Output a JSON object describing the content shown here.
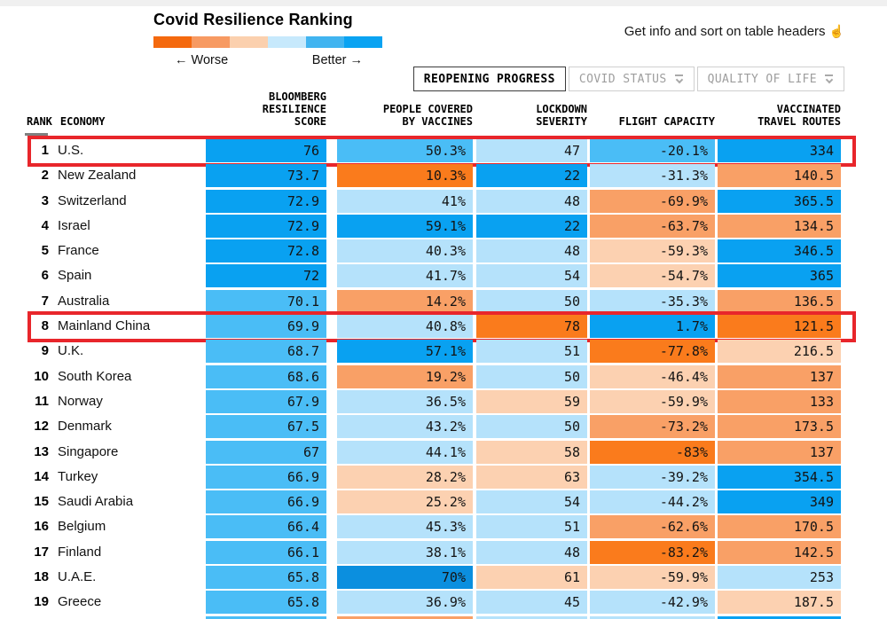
{
  "header": {
    "title": "Covid Resilience Ranking",
    "legend": {
      "worse_label": "← Worse",
      "better_label": "Better →",
      "colors": [
        "#f4690e",
        "#f79a62",
        "#fbd0ae",
        "#c7e9fc",
        "#41b4f0",
        "#0aa3f2"
      ]
    },
    "hint": "Get info and sort on table headers",
    "hand_icon": "☝"
  },
  "tabs": [
    {
      "label": "REOPENING PROGRESS",
      "active": true
    },
    {
      "label": "COVID STATUS",
      "active": false
    },
    {
      "label": "QUALITY OF LIFE",
      "active": false
    }
  ],
  "table": {
    "headers": {
      "rank": "RANK",
      "economy": "ECONOMY",
      "score": [
        "BLOOMBERG",
        "RESILIENCE",
        "SCORE"
      ],
      "vaccines": [
        "PEOPLE COVERED",
        "BY VACCINES"
      ],
      "lockdown": [
        "LOCKDOWN",
        "SEVERITY"
      ],
      "flight": [
        "FLIGHT CAPACITY"
      ],
      "routes": [
        "VACCINATED",
        "TRAVEL ROUTES"
      ]
    },
    "palette": {
      "b1": "#b5e2fb",
      "b2": "#4abdf6",
      "b3": "#09a1f1",
      "b4": "#0b8fdf",
      "o1": "#fcd1b1",
      "o2": "#f9a066",
      "o3": "#fa7b1c"
    },
    "highlight_color": "#e8262b",
    "rows": [
      {
        "rank": "1",
        "economy": "U.S.",
        "score": {
          "v": "76",
          "c": "b3"
        },
        "vaccines": {
          "v": "50.3%",
          "c": "b2"
        },
        "lockdown": {
          "v": "47",
          "c": "b1"
        },
        "flight": {
          "v": "-20.1%",
          "c": "b2"
        },
        "routes": {
          "v": "334",
          "c": "b3"
        },
        "highlight": true
      },
      {
        "rank": "2",
        "economy": "New Zealand",
        "score": {
          "v": "73.7",
          "c": "b3"
        },
        "vaccines": {
          "v": "10.3%",
          "c": "o3"
        },
        "lockdown": {
          "v": "22",
          "c": "b3"
        },
        "flight": {
          "v": "-31.3%",
          "c": "b1"
        },
        "routes": {
          "v": "140.5",
          "c": "o2"
        },
        "highlight": false
      },
      {
        "rank": "3",
        "economy": "Switzerland",
        "score": {
          "v": "72.9",
          "c": "b3"
        },
        "vaccines": {
          "v": "41%",
          "c": "b1"
        },
        "lockdown": {
          "v": "48",
          "c": "b1"
        },
        "flight": {
          "v": "-69.9%",
          "c": "o2"
        },
        "routes": {
          "v": "365.5",
          "c": "b3"
        },
        "highlight": false
      },
      {
        "rank": "4",
        "economy": "Israel",
        "score": {
          "v": "72.9",
          "c": "b3"
        },
        "vaccines": {
          "v": "59.1%",
          "c": "b3"
        },
        "lockdown": {
          "v": "22",
          "c": "b3"
        },
        "flight": {
          "v": "-63.7%",
          "c": "o2"
        },
        "routes": {
          "v": "134.5",
          "c": "o2"
        },
        "highlight": false
      },
      {
        "rank": "5",
        "economy": "France",
        "score": {
          "v": "72.8",
          "c": "b3"
        },
        "vaccines": {
          "v": "40.3%",
          "c": "b1"
        },
        "lockdown": {
          "v": "48",
          "c": "b1"
        },
        "flight": {
          "v": "-59.3%",
          "c": "o1"
        },
        "routes": {
          "v": "346.5",
          "c": "b3"
        },
        "highlight": false
      },
      {
        "rank": "6",
        "economy": "Spain",
        "score": {
          "v": "72",
          "c": "b3"
        },
        "vaccines": {
          "v": "41.7%",
          "c": "b1"
        },
        "lockdown": {
          "v": "54",
          "c": "b1"
        },
        "flight": {
          "v": "-54.7%",
          "c": "o1"
        },
        "routes": {
          "v": "365",
          "c": "b3"
        },
        "highlight": false
      },
      {
        "rank": "7",
        "economy": "Australia",
        "score": {
          "v": "70.1",
          "c": "b2"
        },
        "vaccines": {
          "v": "14.2%",
          "c": "o2"
        },
        "lockdown": {
          "v": "50",
          "c": "b1"
        },
        "flight": {
          "v": "-35.3%",
          "c": "b1"
        },
        "routes": {
          "v": "136.5",
          "c": "o2"
        },
        "highlight": false
      },
      {
        "rank": "8",
        "economy": "Mainland China",
        "score": {
          "v": "69.9",
          "c": "b2"
        },
        "vaccines": {
          "v": "40.8%",
          "c": "b1"
        },
        "lockdown": {
          "v": "78",
          "c": "o3"
        },
        "flight": {
          "v": "1.7%",
          "c": "b3"
        },
        "routes": {
          "v": "121.5",
          "c": "o3"
        },
        "highlight": true
      },
      {
        "rank": "9",
        "economy": "U.K.",
        "score": {
          "v": "68.7",
          "c": "b2"
        },
        "vaccines": {
          "v": "57.1%",
          "c": "b3"
        },
        "lockdown": {
          "v": "51",
          "c": "b1"
        },
        "flight": {
          "v": "-77.8%",
          "c": "o3"
        },
        "routes": {
          "v": "216.5",
          "c": "o1"
        },
        "highlight": false
      },
      {
        "rank": "10",
        "economy": "South Korea",
        "score": {
          "v": "68.6",
          "c": "b2"
        },
        "vaccines": {
          "v": "19.2%",
          "c": "o2"
        },
        "lockdown": {
          "v": "50",
          "c": "b1"
        },
        "flight": {
          "v": "-46.4%",
          "c": "o1"
        },
        "routes": {
          "v": "137",
          "c": "o2"
        },
        "highlight": false
      },
      {
        "rank": "11",
        "economy": "Norway",
        "score": {
          "v": "67.9",
          "c": "b2"
        },
        "vaccines": {
          "v": "36.5%",
          "c": "b1"
        },
        "lockdown": {
          "v": "59",
          "c": "o1"
        },
        "flight": {
          "v": "-59.9%",
          "c": "o1"
        },
        "routes": {
          "v": "133",
          "c": "o2"
        },
        "highlight": false
      },
      {
        "rank": "12",
        "economy": "Denmark",
        "score": {
          "v": "67.5",
          "c": "b2"
        },
        "vaccines": {
          "v": "43.2%",
          "c": "b1"
        },
        "lockdown": {
          "v": "50",
          "c": "b1"
        },
        "flight": {
          "v": "-73.2%",
          "c": "o2"
        },
        "routes": {
          "v": "173.5",
          "c": "o2"
        },
        "highlight": false
      },
      {
        "rank": "13",
        "economy": "Singapore",
        "score": {
          "v": "67",
          "c": "b2"
        },
        "vaccines": {
          "v": "44.1%",
          "c": "b1"
        },
        "lockdown": {
          "v": "58",
          "c": "o1"
        },
        "flight": {
          "v": "-83%",
          "c": "o3"
        },
        "routes": {
          "v": "137",
          "c": "o2"
        },
        "highlight": false
      },
      {
        "rank": "14",
        "economy": "Turkey",
        "score": {
          "v": "66.9",
          "c": "b2"
        },
        "vaccines": {
          "v": "28.2%",
          "c": "o1"
        },
        "lockdown": {
          "v": "63",
          "c": "o1"
        },
        "flight": {
          "v": "-39.2%",
          "c": "b1"
        },
        "routes": {
          "v": "354.5",
          "c": "b3"
        },
        "highlight": false
      },
      {
        "rank": "15",
        "economy": "Saudi Arabia",
        "score": {
          "v": "66.9",
          "c": "b2"
        },
        "vaccines": {
          "v": "25.2%",
          "c": "o1"
        },
        "lockdown": {
          "v": "54",
          "c": "b1"
        },
        "flight": {
          "v": "-44.2%",
          "c": "b1"
        },
        "routes": {
          "v": "349",
          "c": "b3"
        },
        "highlight": false
      },
      {
        "rank": "16",
        "economy": "Belgium",
        "score": {
          "v": "66.4",
          "c": "b2"
        },
        "vaccines": {
          "v": "45.3%",
          "c": "b1"
        },
        "lockdown": {
          "v": "51",
          "c": "b1"
        },
        "flight": {
          "v": "-62.6%",
          "c": "o2"
        },
        "routes": {
          "v": "170.5",
          "c": "o2"
        },
        "highlight": false
      },
      {
        "rank": "17",
        "economy": "Finland",
        "score": {
          "v": "66.1",
          "c": "b2"
        },
        "vaccines": {
          "v": "38.1%",
          "c": "b1"
        },
        "lockdown": {
          "v": "48",
          "c": "b1"
        },
        "flight": {
          "v": "-83.2%",
          "c": "o3"
        },
        "routes": {
          "v": "142.5",
          "c": "o2"
        },
        "highlight": false
      },
      {
        "rank": "18",
        "economy": "U.A.E.",
        "score": {
          "v": "65.8",
          "c": "b2"
        },
        "vaccines": {
          "v": "70%",
          "c": "b4"
        },
        "lockdown": {
          "v": "61",
          "c": "o1"
        },
        "flight": {
          "v": "-59.9%",
          "c": "o1"
        },
        "routes": {
          "v": "253",
          "c": "b1"
        },
        "highlight": false
      },
      {
        "rank": "19",
        "economy": "Greece",
        "score": {
          "v": "65.8",
          "c": "b2"
        },
        "vaccines": {
          "v": "36.9%",
          "c": "b1"
        },
        "lockdown": {
          "v": "45",
          "c": "b1"
        },
        "flight": {
          "v": "-42.9%",
          "c": "b1"
        },
        "routes": {
          "v": "187.5",
          "c": "o1"
        },
        "highlight": false
      }
    ],
    "partial_row": {
      "score": "b2",
      "vaccines": "o2",
      "lockdown": "b1",
      "flight": "b1",
      "routes": "b3"
    }
  }
}
